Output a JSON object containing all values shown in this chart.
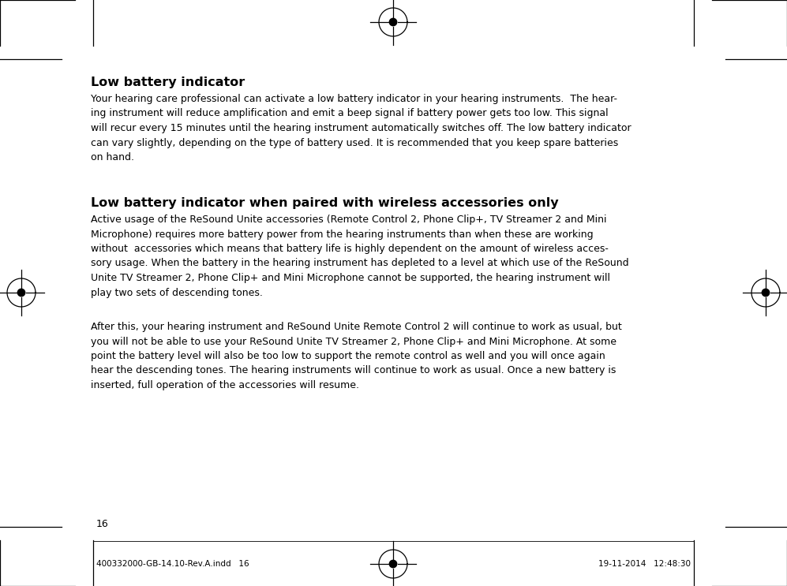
{
  "bg_color": "#ffffff",
  "page_number": "16",
  "footer_left": "400332000-GB-14.10-Rev.A.indd   16",
  "footer_right": "19-11-2014   12:48:30",
  "heading1": "Low battery indicator",
  "body1": "Your hearing care professional can activate a low battery indicator in your hearing instruments.  The hear-\ning instrument will reduce amplification and emit a beep signal if battery power gets too low. This signal\nwill recur every 15 minutes until the hearing instrument automatically switches off. The low battery indicator\ncan vary slightly, depending on the type of battery used. It is recommended that you keep spare batteries\non hand.",
  "heading2": "Low battery indicator when paired with wireless accessories only",
  "body2_para1": "Active usage of the ReSound Unite accessories (Remote Control 2, Phone Clip+, TV Streamer 2 and Mini\nMicrophone) requires more battery power from the hearing instruments than when these are working\nwithout  accessories which means that battery life is highly dependent on the amount of wireless acces-\nsory usage. When the battery in the hearing instrument has depleted to a level at which use of the ReSound\nUnite TV Streamer 2, Phone Clip+ and Mini Microphone cannot be supported, the hearing instrument will\nplay two sets of descending tones.",
  "body2_para2": "After this, your hearing instrument and ReSound Unite Remote Control 2 will continue to work as usual, but\nyou will not be able to use your ReSound Unite TV Streamer 2, Phone Clip+ and Mini Microphone. At some\npoint the battery level will also be too low to support the remote control as well and you will once again\nhear the descending tones. The hearing instruments will continue to work as usual. Once a new battery is\ninserted, full operation of the accessories will resume.",
  "text_color": "#000000",
  "heading_fontsize": 11.5,
  "body_fontsize": 9.0,
  "page_num_fontsize": 9.0,
  "footer_fontsize": 7.5
}
